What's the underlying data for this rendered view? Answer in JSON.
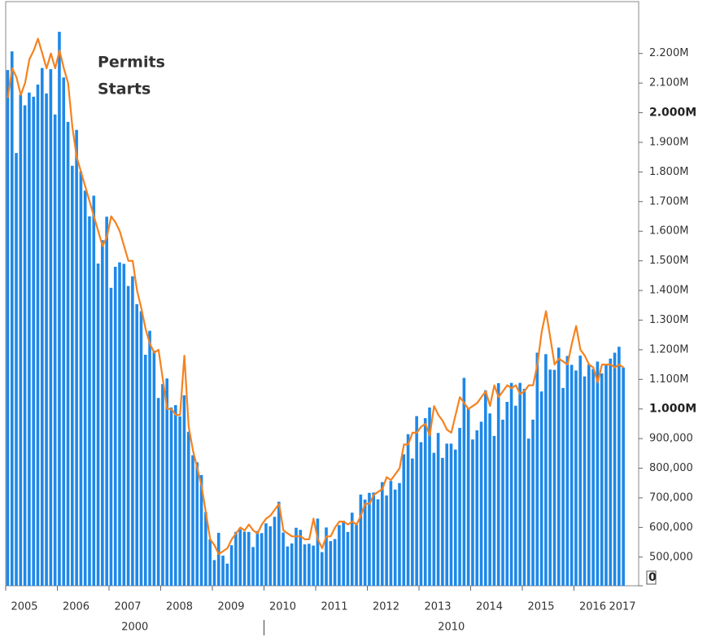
{
  "chart_data": {
    "type": "bar-line",
    "categories": [
      "2005",
      null,
      null,
      null,
      null,
      null,
      null,
      null,
      null,
      null,
      null,
      null,
      "2006",
      null,
      null,
      null,
      null,
      null,
      null,
      null,
      null,
      null,
      null,
      null,
      "2007",
      null,
      null,
      null,
      null,
      null,
      null,
      null,
      null,
      null,
      null,
      null,
      "2008",
      null,
      null,
      null,
      null,
      null,
      null,
      null,
      null,
      null,
      null,
      null,
      "2009",
      null,
      null,
      null,
      null,
      null,
      null,
      null,
      null,
      null,
      null,
      null,
      "2010",
      null,
      null,
      null,
      null,
      null,
      null,
      null,
      null,
      null,
      null,
      null,
      "2011",
      null,
      null,
      null,
      null,
      null,
      null,
      null,
      null,
      null,
      null,
      null,
      "2012",
      null,
      null,
      null,
      null,
      null,
      null,
      null,
      null,
      null,
      null,
      null,
      "2013",
      null,
      null,
      null,
      null,
      null,
      null,
      null,
      null,
      null,
      null,
      null,
      "2014",
      null,
      null,
      null,
      null,
      null,
      null,
      null,
      null,
      null,
      null,
      null,
      "2015",
      null,
      null,
      null,
      null,
      null,
      null,
      null,
      null,
      null,
      null,
      null,
      "2016",
      null,
      null,
      null,
      null,
      null,
      null,
      null,
      null,
      null,
      null,
      null
    ],
    "x_end_label": "2017",
    "decade_labels": [
      "2000",
      "2010"
    ],
    "series": [
      {
        "name": "Starts",
        "kind": "bar",
        "color": "#1e88e8",
        "values": [
          2144000,
          2207000,
          1864000,
          2061000,
          2025000,
          2068000,
          2054000,
          2095000,
          2151000,
          2065000,
          2147000,
          1994000,
          2273000,
          2119000,
          1969000,
          1821000,
          1942000,
          1802000,
          1737000,
          1650000,
          1720000,
          1491000,
          1570000,
          1649000,
          1409000,
          1480000,
          1495000,
          1490000,
          1415000,
          1448000,
          1354000,
          1330000,
          1183000,
          1264000,
          1197000,
          1037000,
          1084000,
          1103000,
          1005000,
          1013000,
          975000,
          1046000,
          923000,
          844000,
          820000,
          777000,
          652000,
          560000,
          490000,
          582000,
          505000,
          478000,
          540000,
          585000,
          594000,
          586000,
          585000,
          534000,
          588000,
          581000,
          614000,
          604000,
          636000,
          687000,
          583000,
          536000,
          546000,
          599000,
          592000,
          543000,
          545000,
          539000,
          630000,
          517000,
          600000,
          554000,
          561000,
          608000,
          623000,
          585000,
          650000,
          610000,
          711000,
          694000,
          717000,
          718000,
          695000,
          753000,
          708000,
          757000,
          728000,
          750000,
          847000,
          915000,
          833000,
          976000,
          888000,
          969000,
          1005000,
          852000,
          919000,
          835000,
          883000,
          883000,
          863000,
          936000,
          1105000,
          1003000,
          897000,
          928000,
          957000,
          1063000,
          985000,
          909000,
          1087000,
          964000,
          1024000,
          1088000,
          1011000,
          1088000,
          1068000,
          900000,
          964000,
          1190000,
          1059000,
          1185000,
          1133000,
          1132000,
          1207000,
          1071000,
          1179000,
          1149000,
          1130000,
          1180000,
          1110000,
          1150000,
          1135000,
          1160000,
          1120000,
          1150000,
          1170000,
          1190000,
          1210000,
          1140000
        ]
      },
      {
        "name": "Permits",
        "kind": "line",
        "color": "#f5821f",
        "values": [
          2050000,
          2150000,
          2120000,
          2060000,
          2100000,
          2180000,
          2210000,
          2250000,
          2200000,
          2150000,
          2200000,
          2150000,
          2210000,
          2150000,
          2100000,
          1950000,
          1850000,
          1800000,
          1750000,
          1700000,
          1650000,
          1600000,
          1550000,
          1580000,
          1650000,
          1630000,
          1600000,
          1550000,
          1500000,
          1500000,
          1400000,
          1340000,
          1270000,
          1220000,
          1190000,
          1200000,
          1100000,
          1000000,
          1000000,
          980000,
          980000,
          1180000,
          940000,
          860000,
          800000,
          740000,
          650000,
          560000,
          540000,
          510000,
          520000,
          530000,
          560000,
          580000,
          600000,
          590000,
          610000,
          590000,
          580000,
          610000,
          630000,
          640000,
          660000,
          680000,
          590000,
          580000,
          570000,
          570000,
          570000,
          560000,
          560000,
          630000,
          560000,
          530000,
          570000,
          570000,
          600000,
          620000,
          620000,
          610000,
          620000,
          610000,
          640000,
          680000,
          680000,
          710000,
          720000,
          730000,
          770000,
          760000,
          780000,
          800000,
          880000,
          880000,
          920000,
          920000,
          940000,
          950000,
          910000,
          1010000,
          980000,
          960000,
          930000,
          920000,
          980000,
          1040000,
          1020000,
          1000000,
          1010000,
          1020000,
          1040000,
          1060000,
          1010000,
          1080000,
          1040000,
          1060000,
          1080000,
          1070000,
          1080000,
          1050000,
          1060000,
          1080000,
          1080000,
          1150000,
          1260000,
          1330000,
          1240000,
          1150000,
          1170000,
          1160000,
          1150000,
          1220000,
          1280000,
          1200000,
          1180000,
          1150000,
          1140000,
          1090000,
          1150000,
          1150000,
          1150000,
          1140000,
          1150000,
          1140000
        ]
      }
    ],
    "legend_order": [
      1,
      0
    ],
    "ylim": [
      0,
      2375000
    ],
    "axis_break": 450000,
    "yticks": [
      0,
      {
        "value": 500000,
        "label": "500,000"
      },
      {
        "value": 600000,
        "label": "600,000"
      },
      {
        "value": 700000,
        "label": "700,000"
      },
      {
        "value": 800000,
        "label": "800,000"
      },
      {
        "value": 900000,
        "label": "900,000"
      },
      {
        "value": 1000000,
        "label": "1.000M",
        "bold": true
      },
      {
        "value": 1100000,
        "label": "1.100M"
      },
      {
        "value": 1200000,
        "label": "1.200M"
      },
      {
        "value": 1300000,
        "label": "1.300M"
      },
      {
        "value": 1400000,
        "label": "1.400M"
      },
      {
        "value": 1500000,
        "label": "1.500M"
      },
      {
        "value": 1600000,
        "label": "1.600M"
      },
      {
        "value": 1700000,
        "label": "1.700M"
      },
      {
        "value": 1800000,
        "label": "1.800M"
      },
      {
        "value": 1900000,
        "label": "1.900M"
      },
      {
        "value": 2000000,
        "label": "2.000M",
        "bold": true
      },
      {
        "value": 2100000,
        "label": "2.100M"
      },
      {
        "value": 2200000,
        "label": "2.200M"
      }
    ],
    "y_axis_side": "right",
    "grid": false
  }
}
